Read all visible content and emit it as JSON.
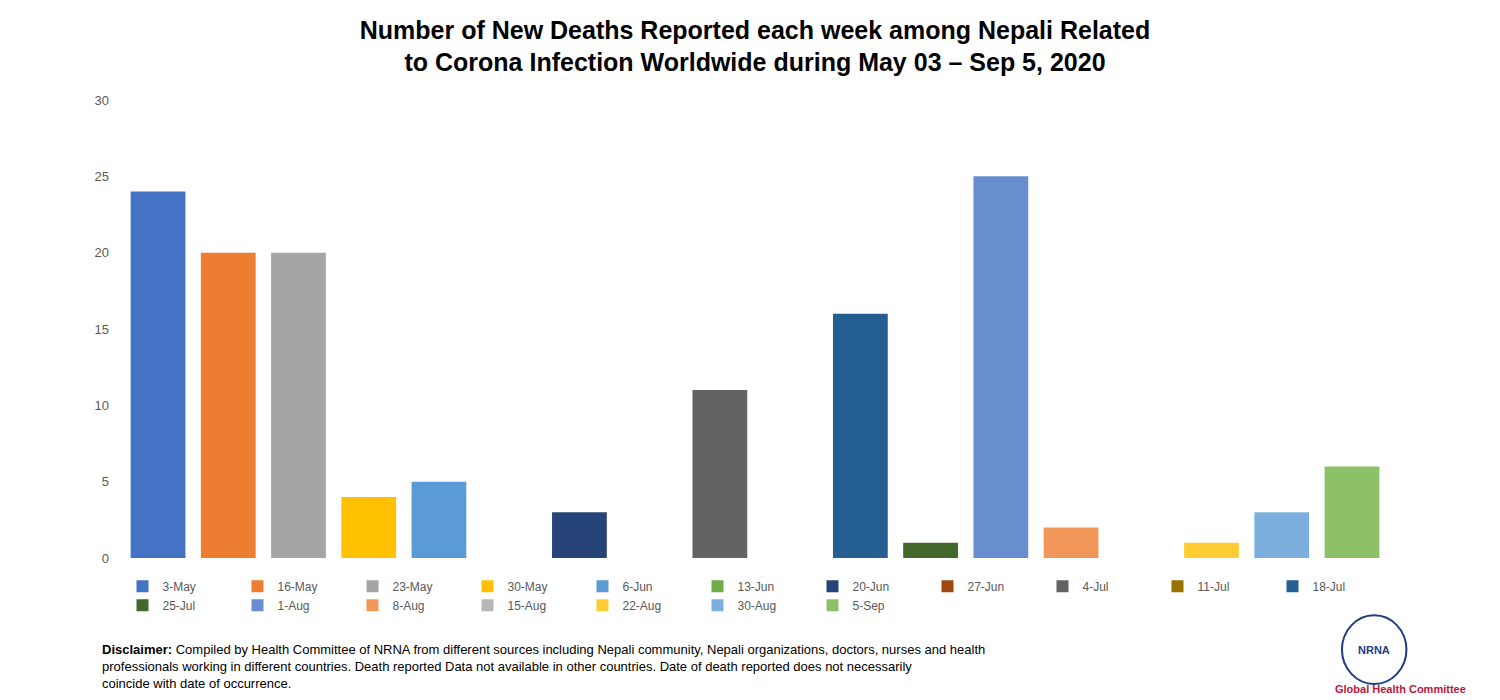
{
  "chart_data": {
    "type": "bar",
    "title": "Number of New Deaths Reported each week among Nepali Related to Corona Infection Worldwide during May 03 – Sep 5, 2020",
    "categories": [
      null
    ],
    "series": [
      {
        "name": "3-May",
        "color": "#4472c4",
        "values": [
          24
        ]
      },
      {
        "name": "16-May",
        "color": "#ed7d31",
        "values": [
          20
        ]
      },
      {
        "name": "23-May",
        "color": "#a5a5a5",
        "values": [
          20
        ]
      },
      {
        "name": "30-May",
        "color": "#ffc000",
        "values": [
          4
        ]
      },
      {
        "name": "6-Jun",
        "color": "#5b9bd5",
        "values": [
          5
        ]
      },
      {
        "name": "13-Jun",
        "color": "#70ad47",
        "values": [
          0
        ]
      },
      {
        "name": "20-Jun",
        "color": "#264478",
        "values": [
          3
        ]
      },
      {
        "name": "27-Jun",
        "color": "#9e480e",
        "values": [
          0
        ]
      },
      {
        "name": "4-Jul",
        "color": "#636363",
        "values": [
          11
        ]
      },
      {
        "name": "11-Jul",
        "color": "#997300",
        "values": [
          0
        ]
      },
      {
        "name": "18-Jul",
        "color": "#255e91",
        "values": [
          16
        ]
      },
      {
        "name": "25-Jul",
        "color": "#43682b",
        "values": [
          1
        ]
      },
      {
        "name": "1-Aug",
        "color": "#698ed0",
        "values": [
          25
        ]
      },
      {
        "name": "8-Aug",
        "color": "#f1975a",
        "values": [
          2
        ]
      },
      {
        "name": "15-Aug",
        "color": "#b7b7b7",
        "values": [
          0
        ]
      },
      {
        "name": "22-Aug",
        "color": "#ffcd33",
        "values": [
          1
        ]
      },
      {
        "name": "30-Aug",
        "color": "#7cafdd",
        "values": [
          3
        ]
      },
      {
        "name": "5-Sep",
        "color": "#8cc168",
        "values": [
          6
        ]
      }
    ],
    "ylim": [
      0,
      30
    ],
    "yticks": [
      0,
      5,
      10,
      15,
      20,
      25,
      30
    ],
    "grid": false,
    "legend": "bottom",
    "tick_labels": "y",
    "annotations": [
      "Disclaimer: Compiled by Health Committee of NRNA from different sources including Nepali community, Nepali organizations, doctors, nurses and health professionals working in different countries. Death reported Data not available in other countries. Date of death reported does not necessarily coincide with date of occurrence.",
      "NRNA",
      "Global Health Committee"
    ]
  }
}
